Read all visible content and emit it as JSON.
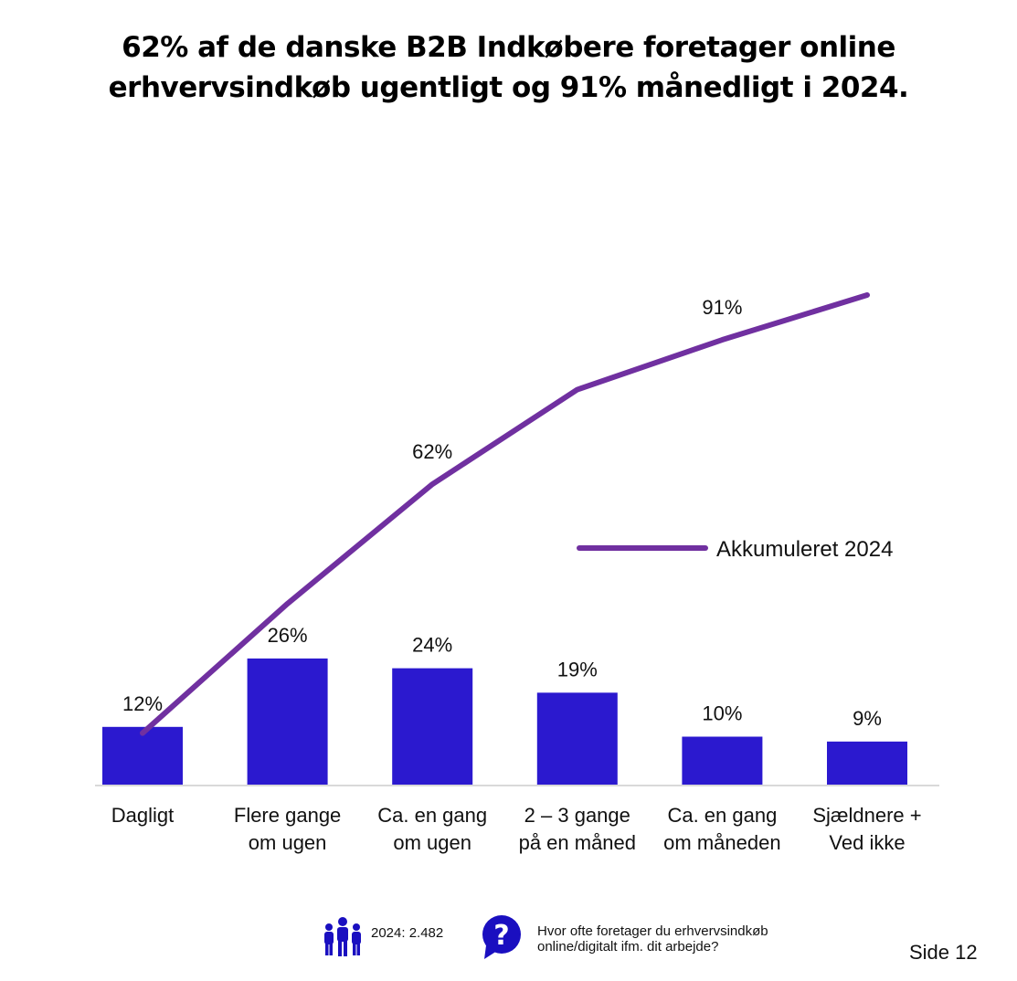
{
  "title": {
    "line1": "62% af de danske B2B Indkøbere foretager online",
    "line2": "erhvervsindkøb ugentligt og 91% månedligt i 2024."
  },
  "colors": {
    "bar": "#2b19cf",
    "line": "#7030a0",
    "axis": "#d9d9d9",
    "text": "#111111",
    "icon": "#1a0fc0"
  },
  "chart_data": {
    "type": "bar",
    "categories": [
      [
        "Dagligt"
      ],
      [
        "Flere gange",
        "om ugen"
      ],
      [
        "Ca. en gang",
        "om ugen"
      ],
      [
        "2 – 3 gange",
        "på en måned"
      ],
      [
        "Ca. en gang",
        "om måneden"
      ],
      [
        "Sjældnere +",
        "Ved ikke"
      ]
    ],
    "series": [
      {
        "name": "2024",
        "kind": "bar",
        "values": [
          12,
          26,
          24,
          19,
          10,
          9
        ],
        "labels": [
          "12%",
          "26%",
          "24%",
          "19%",
          "10%",
          "9%"
        ]
      },
      {
        "name": "Akkumuleret 2024",
        "kind": "line",
        "values": [
          12,
          38,
          62,
          81,
          91,
          100
        ]
      }
    ],
    "line_annotations": [
      {
        "index": 2,
        "text": "62%"
      },
      {
        "index": 4,
        "text": "91%"
      }
    ],
    "legend": {
      "label": "Akkumuleret 2024",
      "position": "right"
    },
    "ylim": [
      0,
      100
    ]
  },
  "footer": {
    "sample": "2024: 2.482",
    "question_line1": "Hvor ofte foretager du erhvervsindkøb",
    "question_line2": "online/digitalt ifm. dit arbejde?",
    "page": "Side 12"
  }
}
